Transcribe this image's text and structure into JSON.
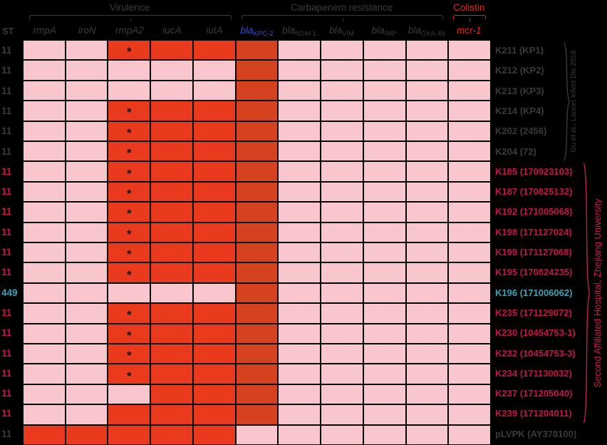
{
  "chart_data": {
    "type": "heatmap",
    "description": "Gene presence/absence matrix: virulence, carbapenem-resistance and colistin genes per Klebsiella pneumoniae strain",
    "value_key": {
      "0": "gene absent (pink)",
      "1": "gene present (red)",
      "1*": "gene present with asterisk mark (truncated)",
      "2": "gene present, blaKPC-2 column (dark red)"
    },
    "header": {
      "st_label": "ST",
      "groups": [
        {
          "label": "Virulence",
          "style": "gray",
          "col_start": 0,
          "col_end": 4
        },
        {
          "label": "Carbapenem resistance",
          "style": "gray",
          "col_start": 5,
          "col_end": 9
        },
        {
          "label": "Colistin",
          "style": "red",
          "col_start": 10,
          "col_end": 10
        }
      ],
      "columns": [
        {
          "label": "rmpA",
          "sub": "",
          "style": "gray"
        },
        {
          "label": "iroN",
          "sub": "",
          "style": "gray"
        },
        {
          "label": "rmpA2",
          "sub": "",
          "style": "gray"
        },
        {
          "label": "iucA",
          "sub": "",
          "style": "gray"
        },
        {
          "label": "iutA",
          "sub": "",
          "style": "gray"
        },
        {
          "label": "bla",
          "sub": "KPC-2",
          "style": "blue"
        },
        {
          "label": "bla",
          "sub": "NDM-1",
          "style": "gray"
        },
        {
          "label": "bla",
          "sub": "VIM",
          "style": "gray"
        },
        {
          "label": "bla",
          "sub": "IMP",
          "style": "gray"
        },
        {
          "label": "bla",
          "sub": "OXA-48",
          "style": "gray"
        },
        {
          "label": "mcr-1",
          "sub": "",
          "style": "red"
        }
      ]
    },
    "rows": [
      {
        "st": "11",
        "st_style": "gray",
        "name": "K211 (KP1)",
        "name_style": "gray",
        "cells": [
          "0",
          "0",
          "1*",
          "1",
          "1",
          "2",
          "0",
          "0",
          "0",
          "0",
          "0"
        ]
      },
      {
        "st": "11",
        "st_style": "gray",
        "name": "K212 (KP2)",
        "name_style": "gray",
        "cells": [
          "0",
          "0",
          "0",
          "0",
          "0",
          "2",
          "0",
          "0",
          "0",
          "0",
          "0"
        ]
      },
      {
        "st": "11",
        "st_style": "gray",
        "name": "K213 (KP3)",
        "name_style": "gray",
        "cells": [
          "0",
          "0",
          "0",
          "0",
          "0",
          "2",
          "0",
          "0",
          "0",
          "0",
          "0"
        ]
      },
      {
        "st": "11",
        "st_style": "gray",
        "name": "K214 (KP4)",
        "name_style": "gray",
        "cells": [
          "0",
          "0",
          "1*",
          "1",
          "1",
          "2",
          "0",
          "0",
          "0",
          "0",
          "0"
        ]
      },
      {
        "st": "11",
        "st_style": "gray",
        "name": "K202 (2456)",
        "name_style": "gray",
        "cells": [
          "0",
          "0",
          "1*",
          "1",
          "1",
          "2",
          "0",
          "0",
          "0",
          "0",
          "0"
        ]
      },
      {
        "st": "11",
        "st_style": "gray",
        "name": "K204 (72)",
        "name_style": "gray",
        "cells": [
          "0",
          "0",
          "1*",
          "1",
          "1",
          "2",
          "0",
          "0",
          "0",
          "0",
          "0"
        ]
      },
      {
        "st": "11",
        "st_style": "crimson",
        "name": "K185 (170923103)",
        "name_style": "crimson",
        "cells": [
          "0",
          "0",
          "1*",
          "1",
          "1",
          "2",
          "0",
          "0",
          "0",
          "0",
          "0"
        ]
      },
      {
        "st": "11",
        "st_style": "crimson",
        "name": "K187 (170825132)",
        "name_style": "crimson",
        "cells": [
          "0",
          "0",
          "1*",
          "1",
          "1",
          "2",
          "0",
          "0",
          "0",
          "0",
          "0"
        ]
      },
      {
        "st": "11",
        "st_style": "crimson",
        "name": "K192 (171005068)",
        "name_style": "crimson",
        "cells": [
          "0",
          "0",
          "1*",
          "1",
          "1",
          "2",
          "0",
          "0",
          "0",
          "0",
          "0"
        ]
      },
      {
        "st": "11",
        "st_style": "crimson",
        "name": "K198 (171127024)",
        "name_style": "crimson",
        "cells": [
          "0",
          "0",
          "1*",
          "1",
          "1",
          "2",
          "0",
          "0",
          "0",
          "0",
          "0"
        ]
      },
      {
        "st": "11",
        "st_style": "crimson",
        "name": "K199 (171127068)",
        "name_style": "crimson",
        "cells": [
          "0",
          "0",
          "1*",
          "1",
          "1",
          "2",
          "0",
          "0",
          "0",
          "0",
          "0"
        ]
      },
      {
        "st": "11",
        "st_style": "crimson",
        "name": "K195 (170824235)",
        "name_style": "crimson",
        "cells": [
          "0",
          "0",
          "1*",
          "1",
          "1",
          "2",
          "0",
          "0",
          "0",
          "0",
          "0"
        ]
      },
      {
        "st": "449",
        "st_style": "teal",
        "name": "K196 (171006062)",
        "name_style": "teal",
        "cells": [
          "0",
          "0",
          "0",
          "0",
          "0",
          "2",
          "0",
          "0",
          "0",
          "0",
          "0"
        ]
      },
      {
        "st": "11",
        "st_style": "crimson",
        "name": "K235 (171129072)",
        "name_style": "crimson",
        "cells": [
          "0",
          "0",
          "1*",
          "1",
          "1",
          "2",
          "0",
          "0",
          "0",
          "0",
          "0"
        ]
      },
      {
        "st": "11",
        "st_style": "crimson",
        "name": "K230 (10454753-1)",
        "name_style": "crimson",
        "cells": [
          "0",
          "0",
          "1*",
          "1",
          "1",
          "2",
          "0",
          "0",
          "0",
          "0",
          "0"
        ]
      },
      {
        "st": "11",
        "st_style": "crimson",
        "name": "K232 (10454753-3)",
        "name_style": "crimson",
        "cells": [
          "0",
          "0",
          "1*",
          "1",
          "1",
          "2",
          "0",
          "0",
          "0",
          "0",
          "0"
        ]
      },
      {
        "st": "11",
        "st_style": "crimson",
        "name": "K234 (171130032)",
        "name_style": "crimson",
        "cells": [
          "0",
          "0",
          "1*",
          "1",
          "1",
          "2",
          "0",
          "0",
          "0",
          "0",
          "0"
        ]
      },
      {
        "st": "11",
        "st_style": "crimson",
        "name": "K237 (171205040)",
        "name_style": "crimson",
        "cells": [
          "0",
          "0",
          "0",
          "1",
          "1",
          "2",
          "0",
          "0",
          "0",
          "0",
          "0"
        ]
      },
      {
        "st": "11",
        "st_style": "crimson",
        "name": "K239 (171204011)",
        "name_style": "crimson",
        "cells": [
          "0",
          "0",
          "1",
          "1",
          "1",
          "2",
          "0",
          "0",
          "0",
          "0",
          "0"
        ]
      },
      {
        "st": "11",
        "st_style": "gray",
        "name": "pLVPK (AY378100)",
        "name_style": "gray",
        "cells": [
          "1",
          "1",
          "1",
          "1",
          "1",
          "0",
          "0",
          "0",
          "0",
          "0",
          "0"
        ]
      }
    ],
    "annotations": {
      "right_groups": [
        {
          "label": "Gu et al., Lancet Infect Dis 2018",
          "style": "gray",
          "row_start": 0,
          "row_end": 5
        },
        {
          "label": "Second Affiliated Hospital, Zhejiang University",
          "style": "red",
          "row_start": 6,
          "row_end": 18
        }
      ]
    }
  },
  "marks": {
    "asterisk": "*"
  },
  "colors": {
    "background": "#000000",
    "cell_negative": "#f9c6ce",
    "cell_positive": "#ea3a1d",
    "cell_positive_kpc": "#d4421f",
    "text_gray": "#3a3a3a",
    "text_crimson": "#c51548",
    "text_teal": "#42a0b5",
    "text_blue": "#3c49cf",
    "text_red": "#e6241c",
    "vertical_label_red": "#c02050",
    "asterisk": "#161616"
  }
}
